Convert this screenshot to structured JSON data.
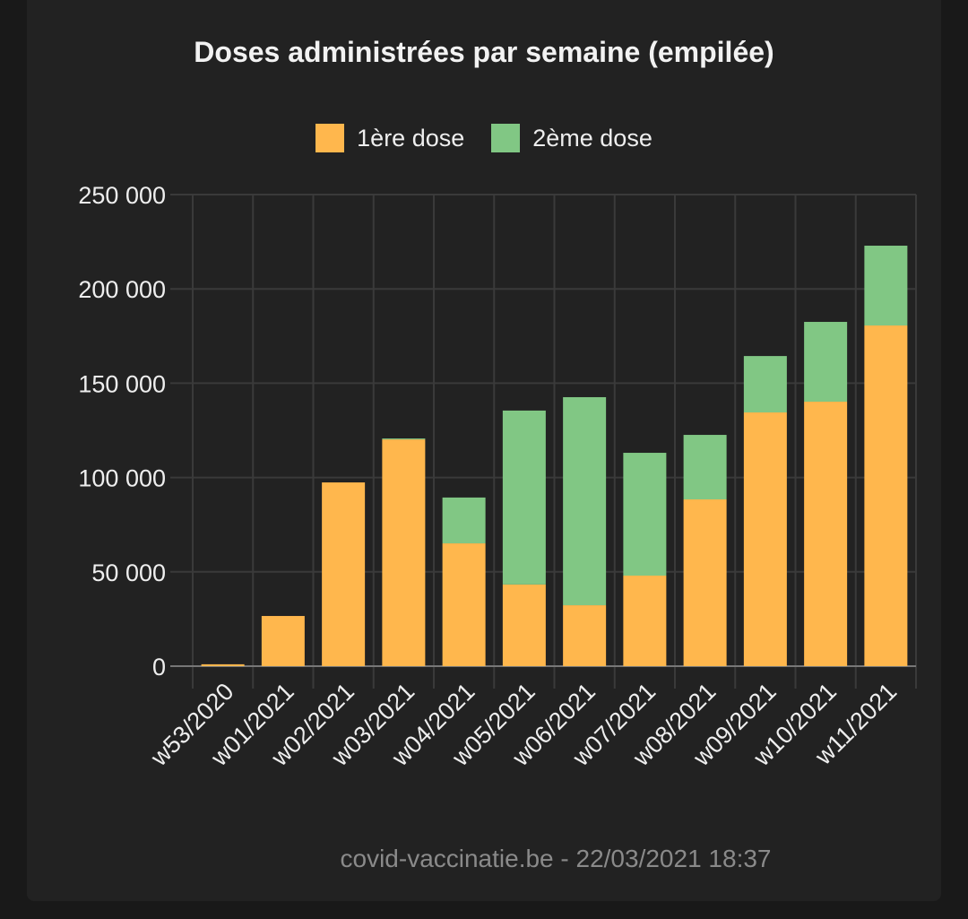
{
  "chart_data": {
    "type": "bar",
    "stacked": true,
    "title": "Doses administrées par semaine (empilée)",
    "categories": [
      "w53/2020",
      "w01/2021",
      "w02/2021",
      "w03/2021",
      "w04/2021",
      "w05/2021",
      "w06/2021",
      "w07/2021",
      "w08/2021",
      "w09/2021",
      "w10/2021",
      "w11/2021"
    ],
    "series": [
      {
        "name": "1ère dose",
        "color": "#ffb74d",
        "values": [
          1000,
          26600,
          97400,
          120200,
          65100,
          43300,
          32300,
          48000,
          88400,
          134500,
          140200,
          180600
        ]
      },
      {
        "name": "2ème dose",
        "color": "#81c784",
        "values": [
          0,
          0,
          0,
          500,
          24300,
          92200,
          110300,
          65100,
          34200,
          29900,
          42300,
          42300
        ]
      }
    ],
    "ylim": [
      0,
      250000
    ],
    "yticks": [
      0,
      50000,
      100000,
      150000,
      200000,
      250000
    ],
    "ytick_labels": [
      "0",
      "50 000",
      "100 000",
      "150 000",
      "200 000",
      "250 000"
    ],
    "xlabel": "",
    "ylabel": "",
    "grid": true,
    "legend_position": "top-center"
  },
  "footer": "covid-vaccinatie.be - 22/03/2021 18:37"
}
